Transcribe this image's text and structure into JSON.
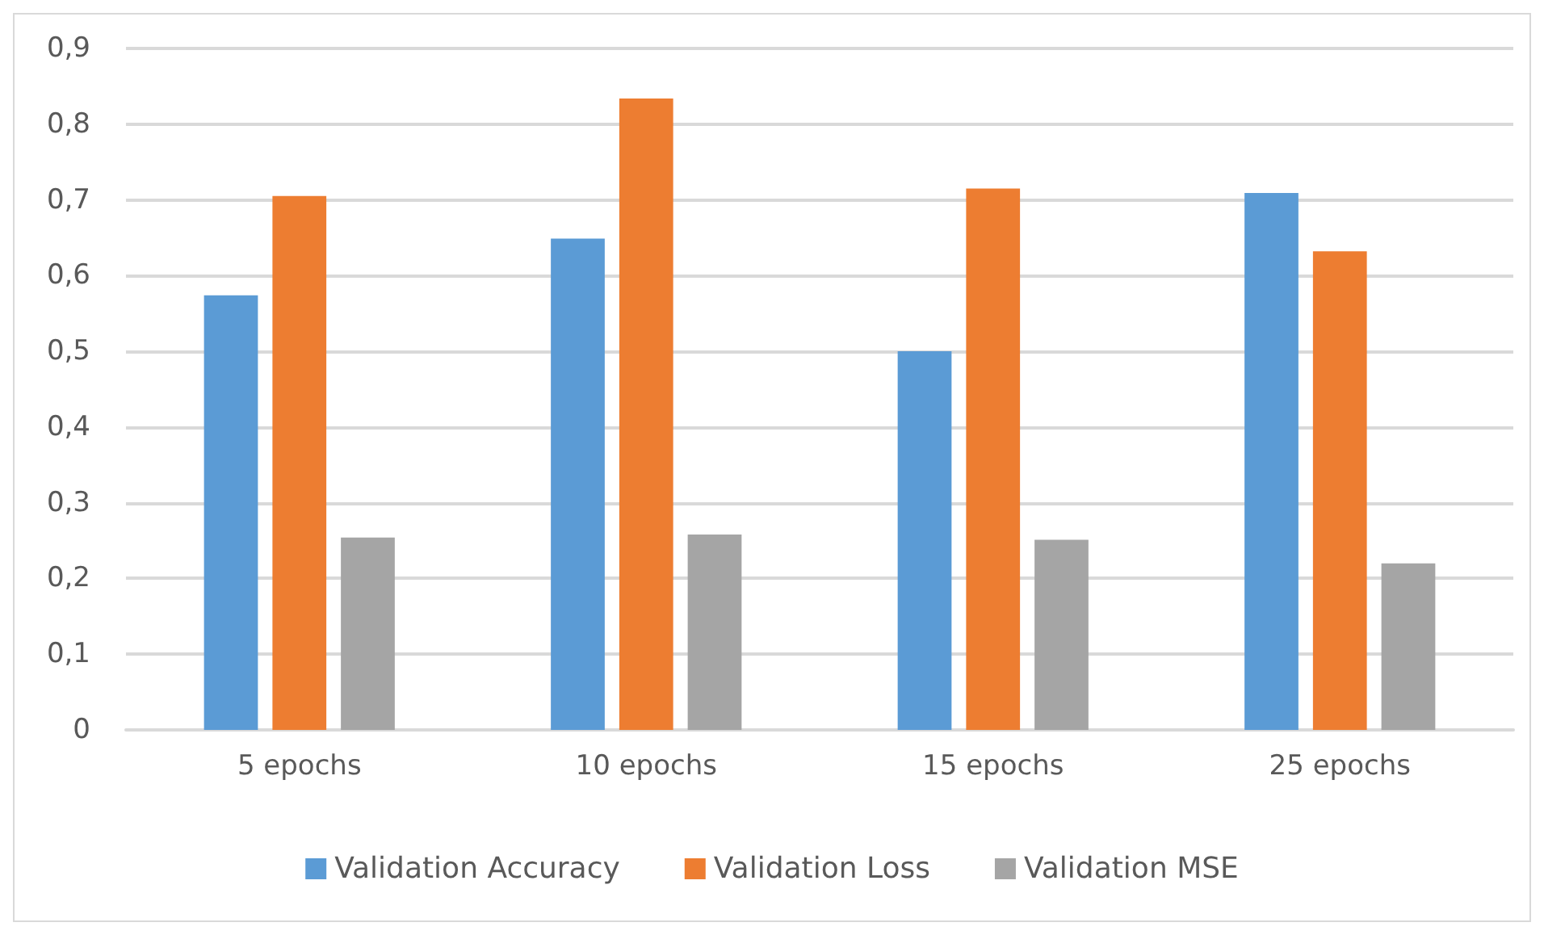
{
  "chart_data": {
    "type": "bar",
    "categories": [
      "5 epochs",
      "10 epochs",
      "15 epochs",
      "25 epochs"
    ],
    "series": [
      {
        "name": "Validation Accuracy",
        "color": "#5b9bd5",
        "values": [
          0.574,
          0.649,
          0.5,
          0.709
        ]
      },
      {
        "name": "Validation Loss",
        "color": "#ed7d31",
        "values": [
          0.705,
          0.834,
          0.715,
          0.632
        ]
      },
      {
        "name": "Validation MSE",
        "color": "#a5a5a5",
        "values": [
          0.254,
          0.258,
          0.251,
          0.22
        ]
      }
    ],
    "ylim": [
      0,
      0.9
    ],
    "yticks": [
      0,
      {
        "value": 0.1,
        "label": "0,1"
      },
      {
        "value": 0.2,
        "label": "0,2"
      },
      {
        "value": 0.3,
        "label": "0,3"
      },
      {
        "value": 0.4,
        "label": "0,4"
      },
      {
        "value": 0.5,
        "label": "0,5"
      },
      {
        "value": 0.6,
        "label": "0,6"
      },
      {
        "value": 0.7,
        "label": "0,7"
      },
      {
        "value": 0.8,
        "label": "0,8"
      },
      {
        "value": 0.9,
        "label": "0,9"
      }
    ],
    "grid": "y",
    "legend": "bottom"
  }
}
